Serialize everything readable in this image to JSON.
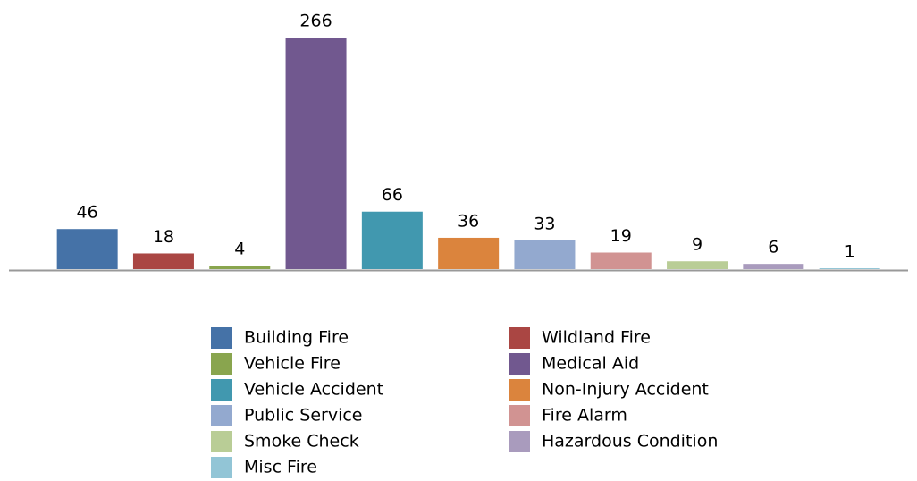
{
  "chart_data": {
    "type": "bar",
    "categories": [
      "Building Fire",
      "Wildland Fire",
      "Vehicle Fire",
      "Medical Aid",
      "Vehicle Accident",
      "Non-Injury Accident",
      "Public Service",
      "Fire Alarm",
      "Smoke Check",
      "Hazardous Condition",
      "Misc Fire"
    ],
    "values": [
      46,
      18,
      4,
      266,
      66,
      36,
      33,
      19,
      9,
      6,
      1
    ],
    "colors": [
      "#4572a7",
      "#aa4643",
      "#89a54e",
      "#71588f",
      "#4198af",
      "#db843d",
      "#93a9cf",
      "#d19392",
      "#b9cd96",
      "#a99bbd",
      "#92c5d6"
    ]
  }
}
